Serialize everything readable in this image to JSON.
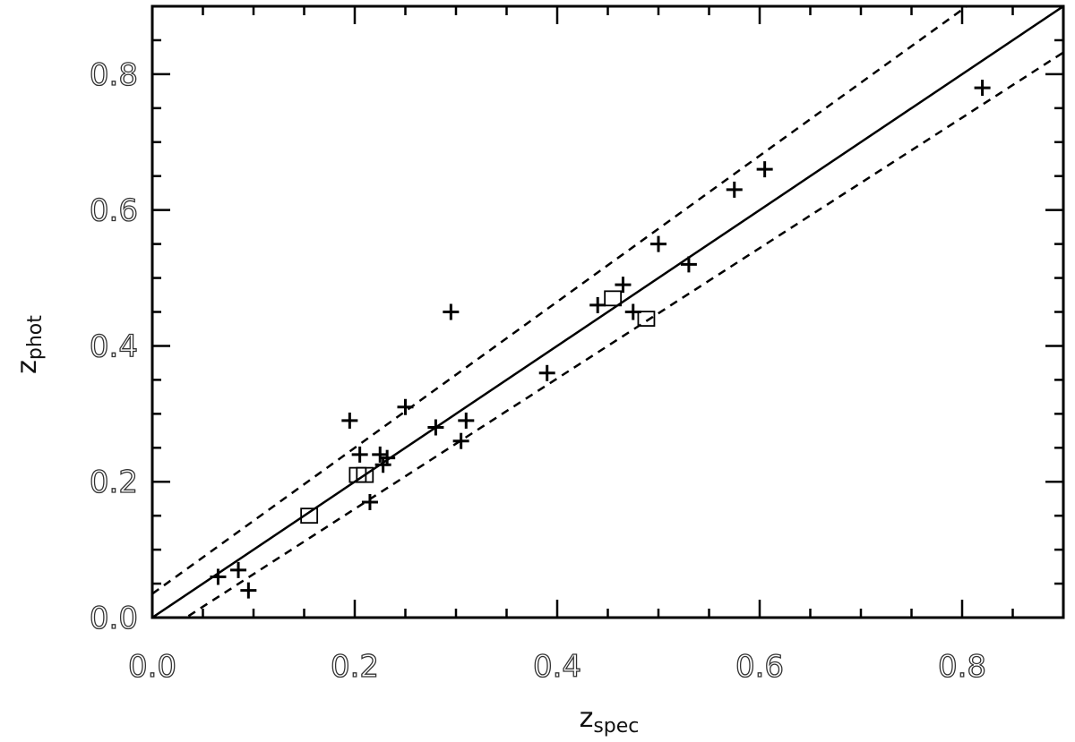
{
  "chart_data": {
    "type": "scatter",
    "title": "",
    "xlabel": {
      "main": "z",
      "sub": "spec"
    },
    "ylabel": {
      "main": "z",
      "sub": "phot"
    },
    "xlim": [
      0.0,
      0.9
    ],
    "ylim": [
      0.0,
      0.9
    ],
    "xticks": [
      {
        "value": 0.0,
        "label": "0.0"
      },
      {
        "value": 0.2,
        "label": "0.2"
      },
      {
        "value": 0.4,
        "label": "0.4"
      },
      {
        "value": 0.6,
        "label": "0.6"
      },
      {
        "value": 0.8,
        "label": "0.8"
      }
    ],
    "yticks": [
      {
        "value": 0.0,
        "label": "0.0"
      },
      {
        "value": 0.2,
        "label": "0.2"
      },
      {
        "value": 0.4,
        "label": "0.4"
      },
      {
        "value": 0.6,
        "label": "0.6"
      },
      {
        "value": 0.8,
        "label": "0.8"
      }
    ],
    "grid": false,
    "lines": [
      {
        "style": "solid",
        "slope": 1.0,
        "intercept": 0.0
      },
      {
        "style": "dashed",
        "slope": 1.075,
        "intercept": 0.035
      },
      {
        "style": "dashed",
        "slope": 0.96,
        "intercept": -0.032
      }
    ],
    "series": [
      {
        "marker": "plus",
        "points": [
          [
            0.065,
            0.06
          ],
          [
            0.085,
            0.07
          ],
          [
            0.095,
            0.04
          ],
          [
            0.195,
            0.29
          ],
          [
            0.205,
            0.24
          ],
          [
            0.215,
            0.17
          ],
          [
            0.225,
            0.24
          ],
          [
            0.228,
            0.225
          ],
          [
            0.232,
            0.235
          ],
          [
            0.25,
            0.31
          ],
          [
            0.28,
            0.28
          ],
          [
            0.295,
            0.45
          ],
          [
            0.305,
            0.26
          ],
          [
            0.31,
            0.29
          ],
          [
            0.39,
            0.36
          ],
          [
            0.44,
            0.46
          ],
          [
            0.465,
            0.49
          ],
          [
            0.475,
            0.45
          ],
          [
            0.5,
            0.55
          ],
          [
            0.53,
            0.52
          ],
          [
            0.575,
            0.63
          ],
          [
            0.605,
            0.66
          ],
          [
            0.82,
            0.78
          ]
        ]
      },
      {
        "marker": "square",
        "points": [
          [
            0.155,
            0.15
          ],
          [
            0.203,
            0.21
          ],
          [
            0.21,
            0.21
          ],
          [
            0.455,
            0.47
          ],
          [
            0.488,
            0.44
          ]
        ]
      }
    ]
  }
}
